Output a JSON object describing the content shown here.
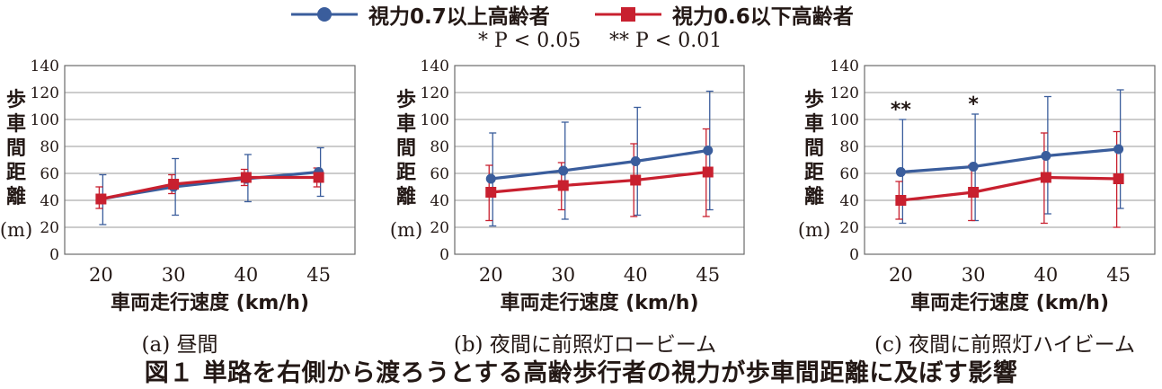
{
  "legend": {
    "series1": "視力0.7以上高齢者",
    "series2": "視力0.6以下高齢者",
    "sig1": "* P < 0.05",
    "sig2": "** P < 0.01"
  },
  "figure_title": "図１ 単路を右側から渡ろうとする高齢歩行者の視力が歩車間距離に及ぼす影響",
  "colors": {
    "series1": "#3a5d9c",
    "series2": "#c8202f"
  },
  "chart_data": [
    {
      "type": "line",
      "caption": "(a) 昼間",
      "xlabel": "車両走行速度 (km/h)",
      "ylabel_chars": [
        "歩",
        "車",
        "間",
        "距",
        "離"
      ],
      "ylabel_unit": "(m)",
      "categories": [
        "20",
        "30",
        "40",
        "45"
      ],
      "ylim": [
        0,
        140
      ],
      "yticks": [
        0,
        20,
        40,
        60,
        80,
        100,
        120,
        140
      ],
      "grid": true,
      "series": [
        {
          "name": "視力0.7以上高齢者",
          "values": [
            41,
            50,
            56,
            61
          ],
          "upper": [
            59,
            71,
            74,
            79
          ],
          "lower": [
            22,
            29,
            39,
            43
          ]
        },
        {
          "name": "視力0.6以下高齢者",
          "values": [
            41,
            52,
            57,
            57
          ],
          "upper": [
            50,
            59,
            63,
            64
          ],
          "lower": [
            34,
            45,
            51,
            50
          ]
        }
      ],
      "annotations": []
    },
    {
      "type": "line",
      "caption": "(b) 夜間に前照灯ロービーム",
      "xlabel": "車両走行速度 (km/h)",
      "ylabel_chars": [
        "歩",
        "車",
        "間",
        "距",
        "離"
      ],
      "ylabel_unit": "(m)",
      "categories": [
        "20",
        "30",
        "40",
        "45"
      ],
      "ylim": [
        0,
        140
      ],
      "yticks": [
        0,
        20,
        40,
        60,
        80,
        100,
        120,
        140
      ],
      "grid": true,
      "series": [
        {
          "name": "視力0.7以上高齢者",
          "values": [
            56,
            62,
            69,
            77
          ],
          "upper": [
            90,
            98,
            109,
            121
          ],
          "lower": [
            21,
            26,
            29,
            33
          ]
        },
        {
          "name": "視力0.6以下高齢者",
          "values": [
            46,
            51,
            55,
            61
          ],
          "upper": [
            66,
            68,
            82,
            93
          ],
          "lower": [
            25,
            33,
            28,
            28
          ]
        }
      ],
      "annotations": []
    },
    {
      "type": "line",
      "caption": "(c) 夜間に前照灯ハイビーム",
      "xlabel": "車両走行速度 (km/h)",
      "ylabel_chars": [
        "歩",
        "車",
        "間",
        "距",
        "離"
      ],
      "ylabel_unit": "(m)",
      "categories": [
        "20",
        "30",
        "40",
        "45"
      ],
      "ylim": [
        0,
        140
      ],
      "yticks": [
        0,
        20,
        40,
        60,
        80,
        100,
        120,
        140
      ],
      "grid": true,
      "series": [
        {
          "name": "視力0.7以上高齢者",
          "values": [
            61,
            65,
            73,
            78
          ],
          "upper": [
            100,
            104,
            117,
            122
          ],
          "lower": [
            23,
            25,
            30,
            34
          ]
        },
        {
          "name": "視力0.6以下高齢者",
          "values": [
            40,
            46,
            57,
            56
          ],
          "upper": [
            54,
            66,
            90,
            91
          ],
          "lower": [
            26,
            25,
            23,
            20
          ]
        }
      ],
      "annotations": [
        {
          "category": "20",
          "text": "**"
        },
        {
          "category": "30",
          "text": "*"
        }
      ]
    }
  ]
}
